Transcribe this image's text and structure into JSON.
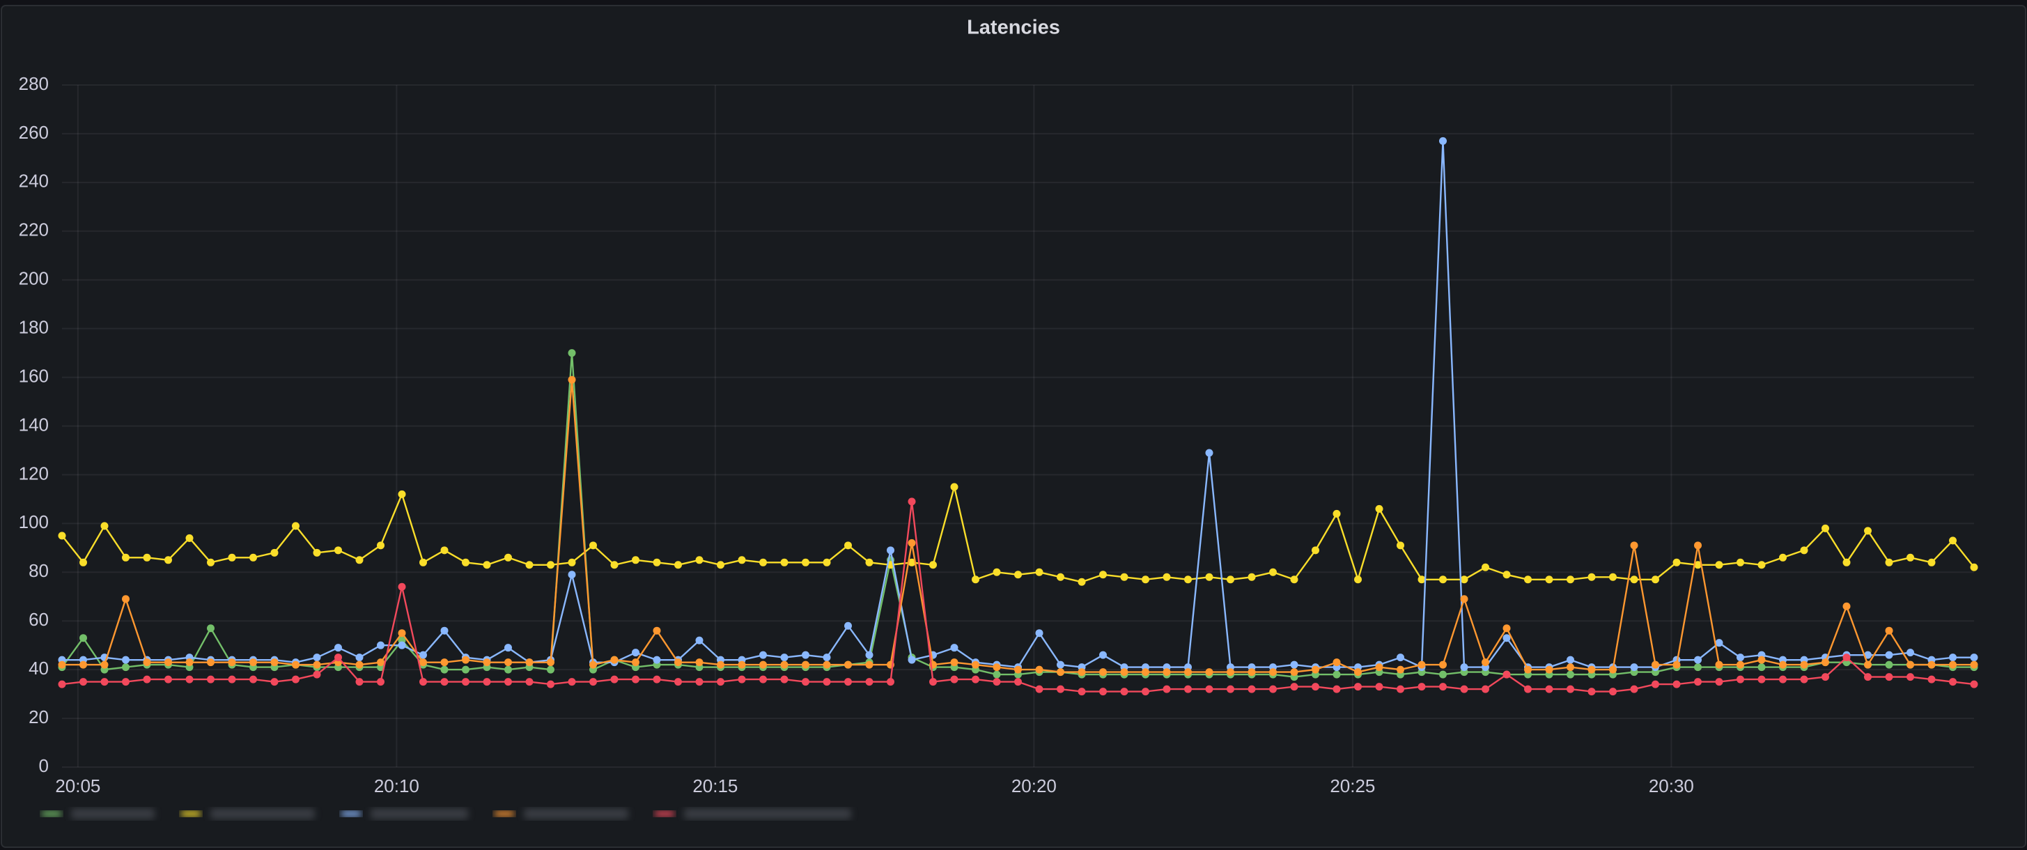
{
  "chart_data": {
    "type": "line",
    "title": "Latencies",
    "x": [
      "20:04:45",
      "20:05:05",
      "20:05:25",
      "20:05:45",
      "20:06:05",
      "20:06:25",
      "20:06:45",
      "20:07:05",
      "20:07:25",
      "20:07:45",
      "20:08:05",
      "20:08:25",
      "20:08:45",
      "20:09:05",
      "20:09:25",
      "20:09:45",
      "20:10:05",
      "20:10:25",
      "20:10:45",
      "20:11:05",
      "20:11:25",
      "20:11:45",
      "20:12:05",
      "20:12:25",
      "20:12:45",
      "20:13:05",
      "20:13:25",
      "20:13:45",
      "20:14:05",
      "20:14:25",
      "20:14:45",
      "20:15:05",
      "20:15:25",
      "20:15:45",
      "20:16:05",
      "20:16:25",
      "20:16:45",
      "20:17:05",
      "20:17:25",
      "20:17:45",
      "20:18:05",
      "20:18:25",
      "20:18:45",
      "20:19:05",
      "20:19:25",
      "20:19:45",
      "20:20:05",
      "20:20:25",
      "20:20:45",
      "20:21:05",
      "20:21:25",
      "20:21:45",
      "20:22:05",
      "20:22:25",
      "20:22:45",
      "20:23:05",
      "20:23:25",
      "20:23:45",
      "20:24:05",
      "20:24:25",
      "20:24:45",
      "20:25:05",
      "20:25:25",
      "20:25:45",
      "20:26:05",
      "20:26:25",
      "20:26:45",
      "20:27:05",
      "20:27:25",
      "20:27:45",
      "20:28:05",
      "20:28:25",
      "20:28:45",
      "20:29:05",
      "20:29:25",
      "20:29:45",
      "20:30:05",
      "20:30:25",
      "20:30:45",
      "20:31:05",
      "20:31:25",
      "20:31:45",
      "20:32:05",
      "20:32:25",
      "20:32:45",
      "20:33:05",
      "20:33:25",
      "20:33:45",
      "20:34:05",
      "20:34:25",
      "20:34:45"
    ],
    "series": [
      {
        "color": "#73bf69",
        "values": [
          41,
          53,
          40,
          41,
          42,
          42,
          41,
          57,
          42,
          41,
          41,
          42,
          41,
          41,
          41,
          41,
          52,
          42,
          40,
          40,
          41,
          40,
          41,
          40,
          170,
          40,
          44,
          41,
          42,
          42,
          41,
          41,
          41,
          41,
          41,
          41,
          41,
          42,
          43,
          85,
          45,
          41,
          41,
          40,
          38,
          38,
          39,
          39,
          38,
          38,
          38,
          38,
          38,
          38,
          38,
          38,
          38,
          38,
          37,
          38,
          38,
          38,
          39,
          38,
          39,
          38,
          39,
          39,
          38,
          38,
          38,
          38,
          38,
          38,
          39,
          39,
          41,
          41,
          41,
          41,
          41,
          41,
          41,
          43,
          43,
          42,
          42,
          42,
          42,
          41,
          41
        ]
      },
      {
        "color": "#fade2a",
        "values": [
          95,
          84,
          99,
          86,
          86,
          85,
          94,
          84,
          86,
          86,
          88,
          99,
          88,
          89,
          85,
          91,
          112,
          84,
          89,
          84,
          83,
          86,
          83,
          83,
          84,
          91,
          83,
          85,
          84,
          83,
          85,
          83,
          85,
          84,
          84,
          84,
          84,
          91,
          84,
          83,
          84,
          83,
          115,
          77,
          80,
          79,
          80,
          78,
          76,
          79,
          78,
          77,
          78,
          77,
          78,
          77,
          78,
          80,
          77,
          89,
          104,
          77,
          106,
          91,
          77,
          77,
          77,
          82,
          79,
          77,
          77,
          77,
          78,
          78,
          77,
          77,
          84,
          83,
          83,
          84,
          83,
          86,
          89,
          98,
          84,
          97,
          84,
          86,
          84,
          93,
          82
        ]
      },
      {
        "color": "#8ab8ff",
        "values": [
          44,
          44,
          45,
          44,
          44,
          44,
          45,
          44,
          44,
          44,
          44,
          43,
          45,
          49,
          45,
          50,
          50,
          46,
          56,
          45,
          44,
          49,
          43,
          44,
          79,
          43,
          43,
          47,
          44,
          44,
          52,
          44,
          44,
          46,
          45,
          46,
          45,
          58,
          46,
          89,
          44,
          46,
          49,
          43,
          42,
          41,
          55,
          42,
          41,
          46,
          41,
          41,
          41,
          41,
          129,
          41,
          41,
          41,
          42,
          41,
          41,
          41,
          42,
          45,
          41,
          257,
          41,
          41,
          53,
          41,
          41,
          44,
          41,
          41,
          41,
          41,
          44,
          44,
          51,
          45,
          46,
          44,
          44,
          45,
          46,
          46,
          46,
          47,
          44,
          45,
          45
        ]
      },
      {
        "color": "#ff9830",
        "values": [
          42,
          42,
          42,
          69,
          43,
          43,
          43,
          43,
          43,
          43,
          43,
          42,
          42,
          43,
          42,
          43,
          55,
          43,
          43,
          44,
          43,
          43,
          43,
          43,
          159,
          42,
          44,
          43,
          56,
          43,
          43,
          42,
          42,
          42,
          42,
          42,
          42,
          42,
          42,
          42,
          92,
          42,
          43,
          42,
          41,
          40,
          40,
          39,
          39,
          39,
          39,
          39,
          39,
          39,
          39,
          39,
          39,
          39,
          39,
          40,
          43,
          39,
          41,
          40,
          42,
          42,
          69,
          43,
          57,
          40,
          40,
          41,
          40,
          40,
          91,
          42,
          42,
          91,
          42,
          42,
          44,
          42,
          42,
          43,
          66,
          42,
          56,
          42,
          42,
          42,
          42
        ]
      },
      {
        "color": "#f2495c",
        "values": [
          34,
          35,
          35,
          35,
          36,
          36,
          36,
          36,
          36,
          36,
          35,
          36,
          38,
          45,
          35,
          35,
          74,
          35,
          35,
          35,
          35,
          35,
          35,
          34,
          35,
          35,
          36,
          36,
          36,
          35,
          35,
          35,
          36,
          36,
          36,
          35,
          35,
          35,
          35,
          35,
          109,
          35,
          36,
          36,
          35,
          35,
          32,
          32,
          31,
          31,
          31,
          31,
          32,
          32,
          32,
          32,
          32,
          32,
          33,
          33,
          32,
          33,
          33,
          32,
          33,
          33,
          32,
          32,
          38,
          32,
          32,
          32,
          31,
          31,
          32,
          34,
          34,
          35,
          35,
          36,
          36,
          36,
          36,
          37,
          45,
          37,
          37,
          37,
          36,
          35,
          34
        ]
      }
    ],
    "xlim": [
      "20:04:45",
      "20:34:45"
    ],
    "xticks": [
      {
        "value": "20:05:00",
        "label": "20:05"
      },
      {
        "value": "20:10:00",
        "label": "20:10"
      },
      {
        "value": "20:15:00",
        "label": "20:15"
      },
      {
        "value": "20:20:00",
        "label": "20:20"
      },
      {
        "value": "20:25:00",
        "label": "20:25"
      },
      {
        "value": "20:30:00",
        "label": "20:30"
      }
    ],
    "ylim": [
      0,
      280
    ],
    "yticks": [
      0,
      20,
      40,
      60,
      80,
      100,
      120,
      140,
      160,
      180,
      200,
      220,
      240,
      260,
      280
    ],
    "grid": true
  }
}
